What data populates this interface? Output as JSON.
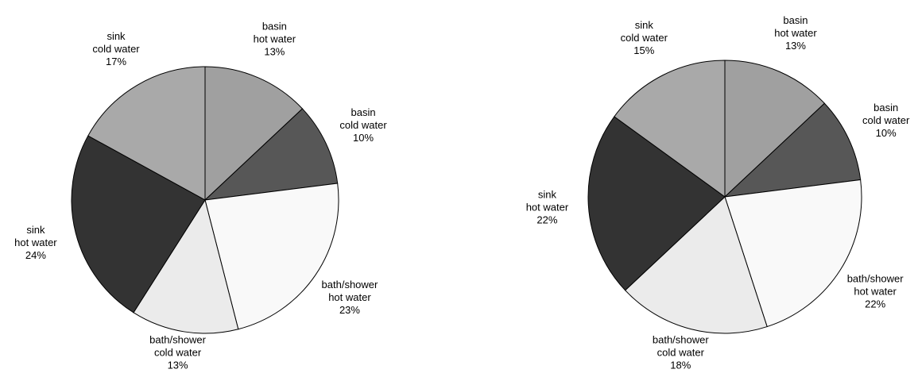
{
  "chart_data": [
    {
      "type": "pie",
      "categories": [
        [
          "basin",
          "hot water"
        ],
        [
          "basin",
          "cold water"
        ],
        [
          "bath/shower",
          "hot water"
        ],
        [
          "bath/shower",
          "cold water"
        ],
        [
          "sink",
          "hot water"
        ],
        [
          "sink",
          "cold water"
        ]
      ],
      "values": [
        13,
        10,
        23,
        13,
        24,
        17
      ],
      "value_labels": [
        "13%",
        "10%",
        "23%",
        "13%",
        "24%",
        "17%"
      ],
      "colors": [
        "#a0a0a0",
        "#575757",
        "#f9f9f9",
        "#ebebeb",
        "#333333",
        "#a9a9a9"
      ]
    },
    {
      "type": "pie",
      "categories": [
        [
          "basin",
          "hot water"
        ],
        [
          "basin",
          "cold water"
        ],
        [
          "bath/shower",
          "hot water"
        ],
        [
          "bath/shower",
          "cold water"
        ],
        [
          "sink",
          "hot water"
        ],
        [
          "sink",
          "cold water"
        ]
      ],
      "values": [
        13,
        10,
        22,
        18,
        22,
        15
      ],
      "value_labels": [
        "13%",
        "10%",
        "22%",
        "18%",
        "22%",
        "15%"
      ],
      "colors": [
        "#a0a0a0",
        "#575757",
        "#f9f9f9",
        "#ebebeb",
        "#333333",
        "#a9a9a9"
      ]
    }
  ]
}
